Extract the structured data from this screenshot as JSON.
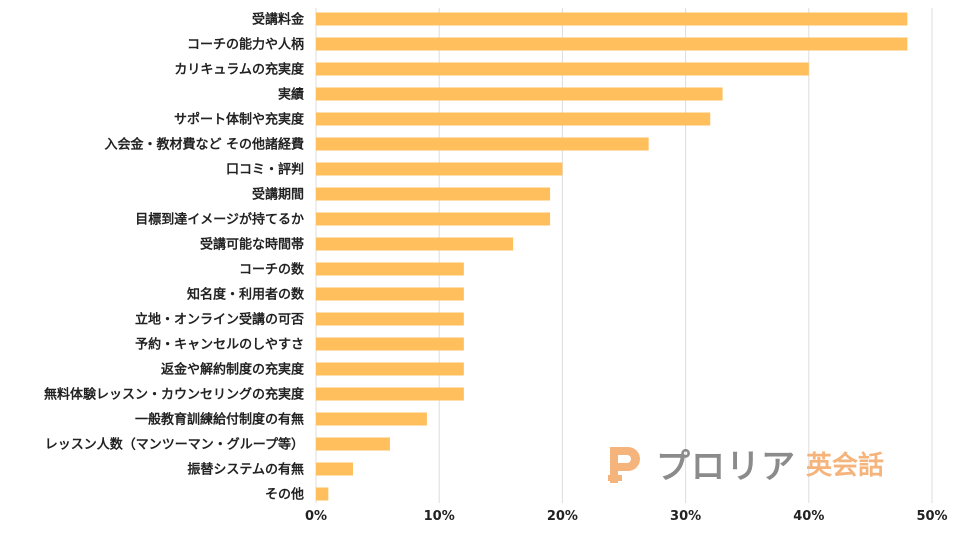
{
  "colors": {
    "bar": "#FFBF5C",
    "grid": "#DDDDDD",
    "text": "#222222",
    "logo_orange": "#F5A867",
    "logo_gray": "#777777"
  },
  "logo": {
    "name": "プロリア",
    "subtitle": "英会話"
  },
  "chart_data": {
    "type": "bar",
    "orientation": "horizontal",
    "title": "",
    "xlabel": "",
    "ylabel": "",
    "xlim": [
      0,
      50
    ],
    "xticks": [
      0,
      10,
      20,
      30,
      40,
      50
    ],
    "tick_labels": [
      "0%",
      "10%",
      "20%",
      "30%",
      "40%",
      "50%"
    ],
    "grid": true,
    "categories": [
      "受講料金",
      "コーチの能力や人柄",
      "カリキュラムの充実度",
      "実績",
      "サポート体制や充実度",
      "入会金・教材費など その他諸経費",
      "口コミ・評判",
      "受講期間",
      "目標到達イメージが持てるか",
      "受講可能な時間帯",
      "コーチの数",
      "知名度・利用者の数",
      "立地・オンライン受講の可否",
      "予約・キャンセルのしやすさ",
      "返金や解約制度の充実度",
      "無料体験レッスン・カウンセリングの充実度",
      "一般教育訓練給付制度の有無",
      "レッスン人数（マンツーマン・グループ等）",
      "振替システムの有無",
      "その他"
    ],
    "values": [
      48,
      48,
      40,
      33,
      32,
      27,
      20,
      19,
      19,
      16,
      12,
      12,
      12,
      12,
      12,
      12,
      9,
      6,
      3,
      1
    ]
  }
}
